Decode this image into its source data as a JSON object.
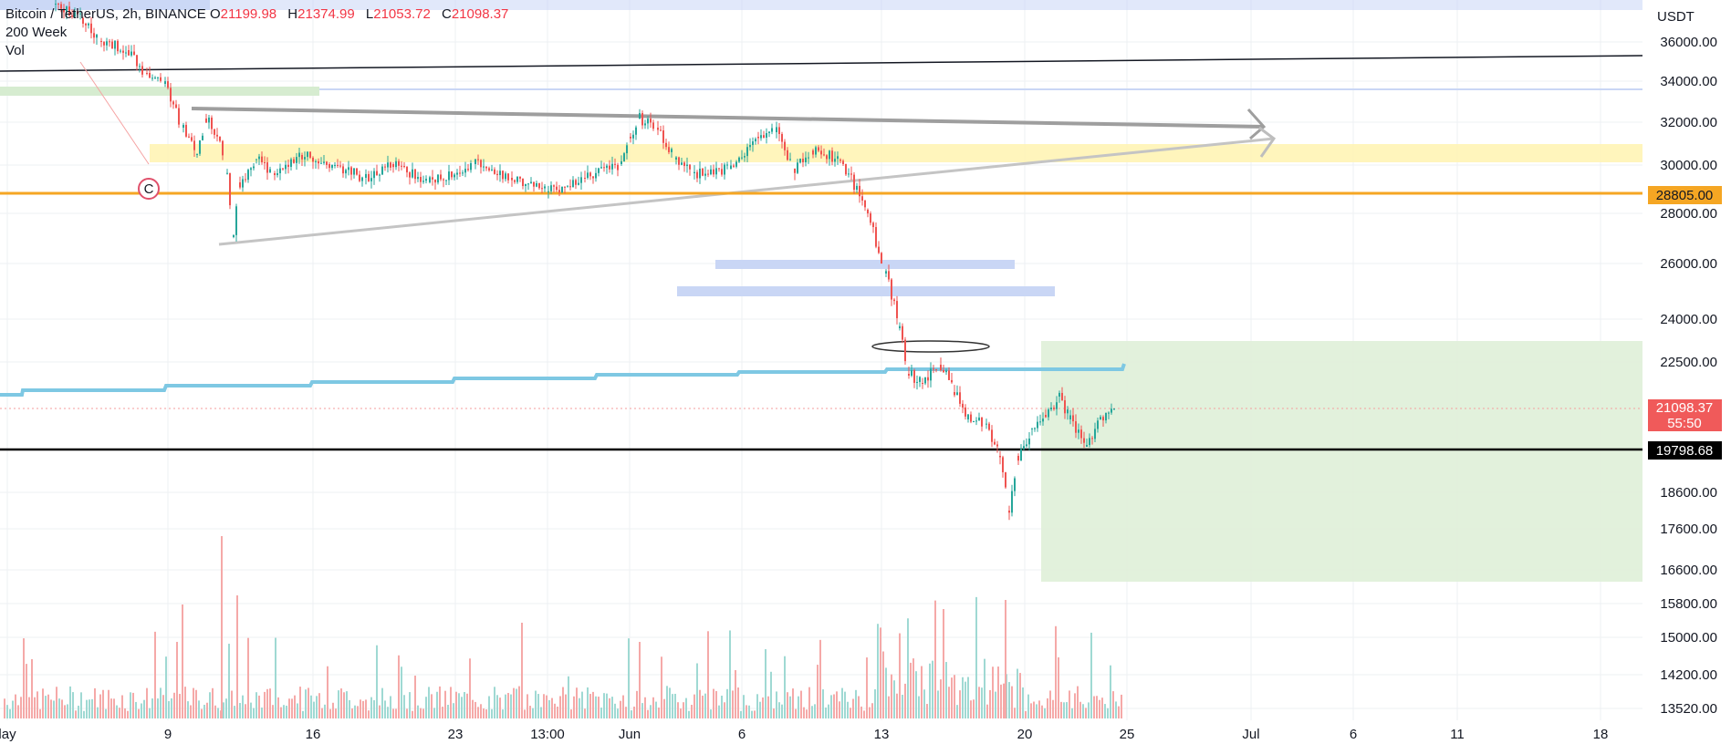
{
  "header": {
    "symbol": "Bitcoin / TetherUS, 2h, BINANCE",
    "ohlc": [
      {
        "key": "O",
        "value": "21199.98"
      },
      {
        "key": "H",
        "value": "21374.99"
      },
      {
        "key": "L",
        "value": "21053.72"
      },
      {
        "key": "C",
        "value": "21098.37"
      }
    ],
    "indicator_1": "200 Week",
    "indicator_2": "Vol"
  },
  "colors": {
    "up": "#26a69a",
    "down": "#ef5350",
    "orange_level": "#f5a623",
    "ma_line": "#7ec8e3",
    "support_line": "#000000",
    "last_price_tag": "#f23645",
    "yellow_zone": "#fff3b0",
    "green_zone": "#dff0d8",
    "blue_zone": "#c9d6f5"
  },
  "chart_data": {
    "type": "candlestick",
    "currency_label": "USDT",
    "y_axis_ticks": [
      "36000.00",
      "34000.00",
      "32000.00",
      "30000.00",
      "28000.00",
      "26000.00",
      "24000.00",
      "22500.00",
      "18600.00",
      "17600.00",
      "16600.00",
      "15800.00",
      "15000.00",
      "14200.00",
      "13520.00"
    ],
    "x_axis_ticks": [
      "lay",
      "9",
      "16",
      "23",
      "13:00",
      "Jun",
      "6",
      "13",
      "20",
      "25",
      "Jul",
      "6",
      "11",
      "18"
    ],
    "price_tags": {
      "orange_level": "28805.00",
      "last_price": "21098.37",
      "countdown": "55:50",
      "support_level": "19798.68"
    },
    "marker": "C"
  }
}
